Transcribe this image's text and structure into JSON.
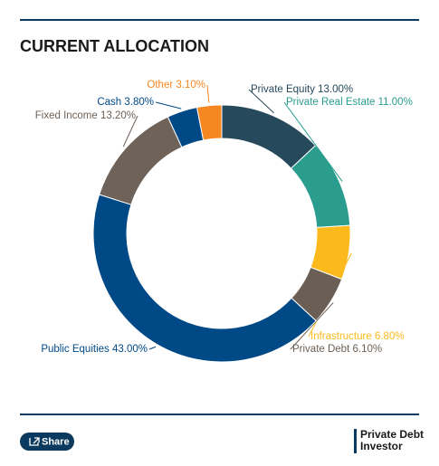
{
  "chart_data": {
    "type": "donut",
    "title": "CURRENT ALLOCATION",
    "categories": [
      "Private Equity",
      "Private Real Estate",
      "Infrastructure",
      "Private Debt",
      "Public Equities",
      "Fixed Income",
      "Cash",
      "Other"
    ],
    "values": [
      13.0,
      11.0,
      6.8,
      6.1,
      43.0,
      13.2,
      3.8,
      3.1
    ],
    "value_labels": [
      "13.00%",
      "11.00%",
      "6.80%",
      "6.10%",
      "43.00%",
      "13.20%",
      "3.80%",
      "3.10%"
    ],
    "colors": [
      "#264a5c",
      "#2a9d8f",
      "#fbb91c",
      "#6b5f55",
      "#004987",
      "#6e6259",
      "#004987",
      "#f6861f"
    ]
  },
  "footer": {
    "share": "Share",
    "logo": [
      "Private Debt",
      "Investor"
    ]
  }
}
